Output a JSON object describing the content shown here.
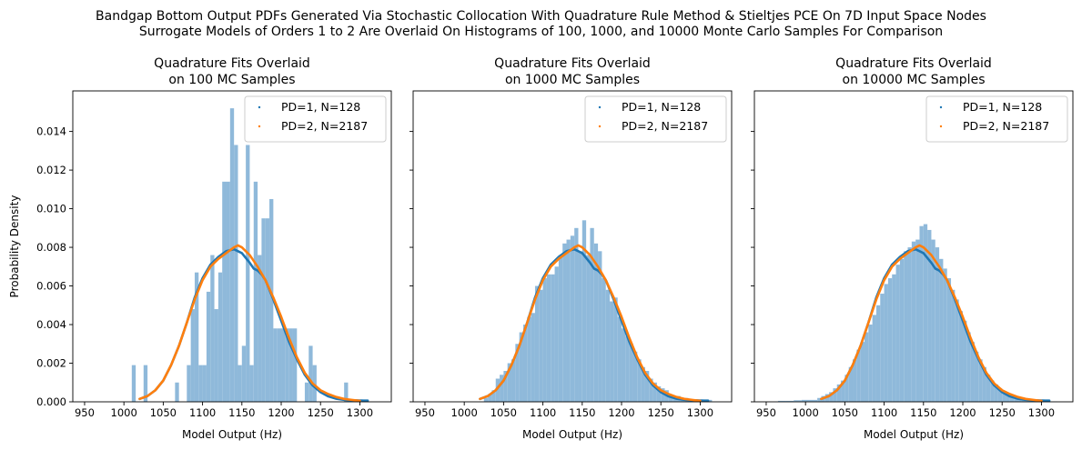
{
  "figure": {
    "suptitle_line1": "Bandgap Bottom Output PDFs Generated Via Stochastic Collocation With Quadrature Rule Method & Stieltjes PCE On 7D Input Space Nodes",
    "suptitle_line2": "Surrogate Models of Orders 1 to 2 Are Overlaid On Histograms of 100, 1000, and 10000 Monte Carlo Samples For Comparison"
  },
  "colors": {
    "hist": "#8fb9da",
    "pd1": "#1f77b4",
    "pd2": "#ff7f0e"
  },
  "chart_data": [
    {
      "type": "histogram",
      "title_line1": "Quadrature Fits Overlaid",
      "title_line2": "on 100 MC Samples",
      "xlabel": "Model Output (Hz)",
      "ylabel": "Probability Density",
      "xlim": [
        935,
        1340
      ],
      "ylim": [
        0,
        0.0161
      ],
      "xticks": [
        950,
        1000,
        1050,
        1100,
        1150,
        1200,
        1250,
        1300
      ],
      "yticks": [
        0.0,
        0.002,
        0.004,
        0.006,
        0.008,
        0.01,
        0.012,
        0.014
      ],
      "ytick_labels": [
        "0.000",
        "0.002",
        "0.004",
        "0.006",
        "0.008",
        "0.010",
        "0.012",
        "0.014"
      ],
      "legend_position": "top-right",
      "histogram": {
        "bin_edges": [
          1010,
          1015,
          1020,
          1025,
          1030,
          1035,
          1040,
          1045,
          1050,
          1055,
          1060,
          1065,
          1070,
          1075,
          1080,
          1085,
          1090,
          1095,
          1100,
          1105,
          1110,
          1115,
          1120,
          1125,
          1130,
          1135,
          1140,
          1145,
          1150,
          1155,
          1160,
          1165,
          1170,
          1175,
          1180,
          1185,
          1190,
          1195,
          1200,
          1205,
          1210,
          1215,
          1220,
          1225,
          1230,
          1235,
          1240,
          1245,
          1250,
          1255,
          1260,
          1265,
          1270,
          1275,
          1280,
          1285,
          1290
        ],
        "densities": [
          0.0019,
          0,
          0,
          0.0019,
          0,
          0,
          0,
          0,
          0,
          0,
          0,
          0.001,
          0,
          0,
          0.0019,
          0.0048,
          0.0067,
          0.0019,
          0.0019,
          0.0057,
          0.0076,
          0.0048,
          0.0067,
          0.0114,
          0.0114,
          0.0152,
          0.0133,
          0.0019,
          0.0029,
          0.0133,
          0.0019,
          0.0114,
          0.0076,
          0.0095,
          0.0095,
          0.0105,
          0.0038,
          0.0038,
          0.0038,
          0.0038,
          0.0038,
          0.0038,
          0,
          0,
          0.001,
          0.0029,
          0.0019,
          0,
          0,
          0,
          0,
          0,
          0,
          0,
          0.001,
          0
        ]
      },
      "series": [
        {
          "name": "PD=1, N=128",
          "color": "#1f77b4",
          "x": [
            1020,
            1030,
            1040,
            1050,
            1060,
            1070,
            1080,
            1090,
            1100,
            1110,
            1120,
            1130,
            1140,
            1150,
            1160,
            1165,
            1170,
            1175,
            1180,
            1190,
            1200,
            1210,
            1220,
            1230,
            1240,
            1250,
            1260,
            1270,
            1280,
            1290,
            1300,
            1305,
            1310
          ],
          "y": [
            0.00015,
            0.0003,
            0.0006,
            0.0011,
            0.0019,
            0.0029,
            0.0041,
            0.0054,
            0.0064,
            0.0071,
            0.0075,
            0.0078,
            0.0079,
            0.0077,
            0.0072,
            0.0069,
            0.0068,
            0.0066,
            0.0063,
            0.0053,
            0.0042,
            0.0031,
            0.0022,
            0.0014,
            0.00085,
            0.0005,
            0.00028,
            0.00016,
            0.0001,
            8e-05,
            7e-05,
            6e-05,
            6e-05
          ]
        },
        {
          "name": "PD=2, N=2187",
          "color": "#ff7f0e",
          "x": [
            1020,
            1030,
            1040,
            1050,
            1060,
            1070,
            1080,
            1090,
            1100,
            1110,
            1120,
            1130,
            1140,
            1145,
            1150,
            1160,
            1170,
            1180,
            1190,
            1200,
            1210,
            1220,
            1230,
            1240,
            1250,
            1260,
            1270,
            1280,
            1290,
            1300
          ],
          "y": [
            0.00015,
            0.0003,
            0.0006,
            0.0011,
            0.0019,
            0.0029,
            0.0041,
            0.0053,
            0.0063,
            0.007,
            0.0074,
            0.0077,
            0.008,
            0.0081,
            0.008,
            0.0076,
            0.007,
            0.0063,
            0.0054,
            0.0044,
            0.0033,
            0.0023,
            0.0015,
            0.00095,
            0.0006,
            0.0004,
            0.00025,
            0.00015,
            0.0001,
            5e-05
          ]
        }
      ]
    },
    {
      "type": "histogram",
      "title_line1": "Quadrature Fits Overlaid",
      "title_line2": "on 1000 MC Samples",
      "xlabel": "Model Output (Hz)",
      "ylabel": "",
      "xlim": [
        935,
        1340
      ],
      "ylim": [
        0,
        0.0161
      ],
      "xticks": [
        950,
        1000,
        1050,
        1100,
        1150,
        1200,
        1250,
        1300
      ],
      "yticks": [
        0.0,
        0.002,
        0.004,
        0.006,
        0.008,
        0.01,
        0.012,
        0.014
      ],
      "ytick_labels": [
        "",
        "",
        "",
        "",
        "",
        "",
        "",
        ""
      ],
      "legend_position": "top-right",
      "histogram": {
        "bin_edges": [
          1025,
          1030,
          1035,
          1040,
          1045,
          1050,
          1055,
          1060,
          1065,
          1070,
          1075,
          1080,
          1085,
          1090,
          1095,
          1100,
          1105,
          1110,
          1115,
          1120,
          1125,
          1130,
          1135,
          1140,
          1145,
          1150,
          1155,
          1160,
          1165,
          1170,
          1175,
          1180,
          1185,
          1190,
          1195,
          1200,
          1205,
          1210,
          1215,
          1220,
          1225,
          1230,
          1235,
          1240,
          1245,
          1250,
          1255,
          1260,
          1265,
          1270,
          1275,
          1280,
          1285,
          1290,
          1295,
          1300,
          1305,
          1310,
          1315
        ],
        "densities": [
          0.0002,
          0.0004,
          0.0006,
          0.0012,
          0.0014,
          0.0016,
          0.002,
          0.0022,
          0.003,
          0.0036,
          0.004,
          0.0044,
          0.0046,
          0.006,
          0.0058,
          0.0064,
          0.0066,
          0.0066,
          0.007,
          0.0076,
          0.0082,
          0.0084,
          0.0086,
          0.009,
          0.0078,
          0.0094,
          0.0076,
          0.009,
          0.0082,
          0.0078,
          0.0064,
          0.0058,
          0.0052,
          0.0054,
          0.0044,
          0.0038,
          0.0034,
          0.003,
          0.0026,
          0.0022,
          0.0018,
          0.0016,
          0.0012,
          0.001,
          0.0008,
          0.0007,
          0.0006,
          0.0004,
          0.0003,
          0.0003,
          0.0002,
          0.0002,
          0.0001,
          0.0001,
          0.0001,
          0.0001,
          0.0001,
          0.0001
        ]
      },
      "series": [
        {
          "name": "PD=1, N=128",
          "color": "#1f77b4",
          "x": [
            1020,
            1030,
            1040,
            1050,
            1060,
            1070,
            1080,
            1090,
            1100,
            1110,
            1120,
            1130,
            1140,
            1150,
            1160,
            1165,
            1170,
            1175,
            1180,
            1190,
            1200,
            1210,
            1220,
            1230,
            1240,
            1250,
            1260,
            1270,
            1280,
            1290,
            1300,
            1305,
            1310
          ],
          "y": [
            0.00015,
            0.0003,
            0.0006,
            0.0011,
            0.0019,
            0.0029,
            0.0041,
            0.0054,
            0.0064,
            0.0071,
            0.0075,
            0.0078,
            0.0079,
            0.0077,
            0.0072,
            0.0069,
            0.0068,
            0.0066,
            0.0063,
            0.0053,
            0.0042,
            0.0031,
            0.0022,
            0.0014,
            0.00085,
            0.0005,
            0.00028,
            0.00016,
            0.0001,
            8e-05,
            7e-05,
            6e-05,
            6e-05
          ]
        },
        {
          "name": "PD=2, N=2187",
          "color": "#ff7f0e",
          "x": [
            1020,
            1030,
            1040,
            1050,
            1060,
            1070,
            1080,
            1090,
            1100,
            1110,
            1120,
            1130,
            1140,
            1145,
            1150,
            1160,
            1170,
            1180,
            1190,
            1200,
            1210,
            1220,
            1230,
            1240,
            1250,
            1260,
            1270,
            1280,
            1290,
            1300
          ],
          "y": [
            0.00015,
            0.0003,
            0.0006,
            0.0011,
            0.0019,
            0.0029,
            0.0041,
            0.0053,
            0.0063,
            0.007,
            0.0074,
            0.0077,
            0.008,
            0.0081,
            0.008,
            0.0076,
            0.007,
            0.0063,
            0.0054,
            0.0044,
            0.0033,
            0.0023,
            0.0015,
            0.00095,
            0.0006,
            0.0004,
            0.00025,
            0.00015,
            0.0001,
            5e-05
          ]
        }
      ]
    },
    {
      "type": "histogram",
      "title_line1": "Quadrature Fits Overlaid",
      "title_line2": "on 10000 MC Samples",
      "xlabel": "Model Output (Hz)",
      "ylabel": "",
      "xlim": [
        935,
        1340
      ],
      "ylim": [
        0,
        0.0161
      ],
      "xticks": [
        950,
        1000,
        1050,
        1100,
        1150,
        1200,
        1250,
        1300
      ],
      "yticks": [
        0.0,
        0.002,
        0.004,
        0.006,
        0.008,
        0.01,
        0.012,
        0.014
      ],
      "ytick_labels": [
        "",
        "",
        "",
        "",
        "",
        "",
        "",
        ""
      ],
      "legend_position": "top-right",
      "histogram": {
        "bin_edges": [
          965,
          975,
          985,
          995,
          1005,
          1015,
          1020,
          1025,
          1030,
          1035,
          1040,
          1045,
          1050,
          1055,
          1060,
          1065,
          1070,
          1075,
          1080,
          1085,
          1090,
          1095,
          1100,
          1105,
          1110,
          1115,
          1120,
          1125,
          1130,
          1135,
          1140,
          1145,
          1150,
          1155,
          1160,
          1165,
          1170,
          1175,
          1180,
          1185,
          1190,
          1195,
          1200,
          1205,
          1210,
          1215,
          1220,
          1225,
          1230,
          1235,
          1240,
          1245,
          1250,
          1255,
          1260,
          1265,
          1270,
          1275,
          1280,
          1285,
          1290,
          1295,
          1300,
          1310,
          1320
        ],
        "densities": [
          5e-05,
          5e-05,
          8e-05,
          0.0001,
          0.0001,
          0.0002,
          0.0003,
          0.0004,
          0.0005,
          0.0007,
          0.0009,
          0.0011,
          0.0014,
          0.0018,
          0.0022,
          0.0027,
          0.0031,
          0.0036,
          0.004,
          0.0045,
          0.005,
          0.0056,
          0.0061,
          0.0064,
          0.0066,
          0.0071,
          0.0074,
          0.0078,
          0.008,
          0.0083,
          0.0084,
          0.0091,
          0.0092,
          0.0089,
          0.0084,
          0.008,
          0.0074,
          0.0069,
          0.0064,
          0.0058,
          0.0053,
          0.0047,
          0.0042,
          0.0036,
          0.0031,
          0.0026,
          0.0022,
          0.0018,
          0.0014,
          0.0011,
          0.0009,
          0.0007,
          0.0005,
          0.0004,
          0.0003,
          0.0002,
          0.0002,
          0.00012,
          0.0001,
          6e-05,
          4e-05,
          4e-05,
          3e-05,
          2e-05
        ]
      },
      "series": [
        {
          "name": "PD=1, N=128",
          "color": "#1f77b4",
          "x": [
            1020,
            1030,
            1040,
            1050,
            1060,
            1070,
            1080,
            1090,
            1100,
            1110,
            1120,
            1130,
            1140,
            1150,
            1160,
            1165,
            1170,
            1175,
            1180,
            1190,
            1200,
            1210,
            1220,
            1230,
            1240,
            1250,
            1260,
            1270,
            1280,
            1290,
            1300,
            1305,
            1310
          ],
          "y": [
            0.00015,
            0.0003,
            0.0006,
            0.0011,
            0.0019,
            0.0029,
            0.0041,
            0.0054,
            0.0064,
            0.0071,
            0.0075,
            0.0078,
            0.0079,
            0.0077,
            0.0072,
            0.0069,
            0.0068,
            0.0066,
            0.0063,
            0.0053,
            0.0042,
            0.0031,
            0.0022,
            0.0014,
            0.00085,
            0.0005,
            0.00028,
            0.00016,
            0.0001,
            8e-05,
            7e-05,
            6e-05,
            6e-05
          ]
        },
        {
          "name": "PD=2, N=2187",
          "color": "#ff7f0e",
          "x": [
            1020,
            1030,
            1040,
            1050,
            1060,
            1070,
            1080,
            1090,
            1100,
            1110,
            1120,
            1130,
            1140,
            1145,
            1150,
            1160,
            1170,
            1180,
            1190,
            1200,
            1210,
            1220,
            1230,
            1240,
            1250,
            1260,
            1270,
            1280,
            1290,
            1300
          ],
          "y": [
            0.00015,
            0.0003,
            0.0006,
            0.0011,
            0.0019,
            0.0029,
            0.0041,
            0.0053,
            0.0063,
            0.007,
            0.0074,
            0.0077,
            0.008,
            0.0081,
            0.008,
            0.0076,
            0.007,
            0.0063,
            0.0054,
            0.0044,
            0.0033,
            0.0023,
            0.0015,
            0.00095,
            0.0006,
            0.0004,
            0.00025,
            0.00015,
            0.0001,
            5e-05
          ]
        }
      ]
    }
  ]
}
